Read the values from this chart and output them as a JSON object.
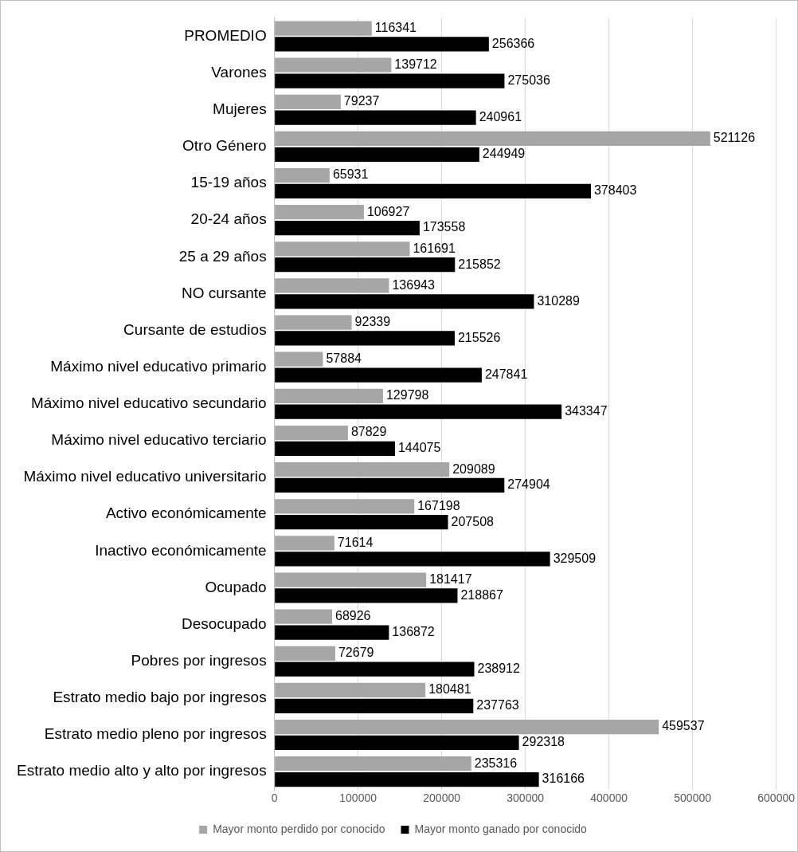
{
  "chart_data": {
    "type": "bar",
    "orientation": "horizontal",
    "categories": [
      "PROMEDIO",
      "Varones",
      "Mujeres",
      "Otro Género",
      "15-19 años",
      "20-24 años",
      "25 a 29 años",
      "NO cursante",
      "Cursante de estudios",
      "Máximo nivel educativo primario",
      "Máximo nivel educativo secundario",
      "Máximo nivel educativo terciario",
      "Máximo nivel educativo universitario",
      "Activo económicamente",
      "Inactivo económicamente",
      "Ocupado",
      "Desocupado",
      "Pobres por ingresos",
      "Estrato medio bajo por ingresos",
      "Estrato medio pleno por ingresos",
      "Estrato medio alto y alto por ingresos"
    ],
    "series": [
      {
        "name": "Mayor monto perdido por conocido",
        "color": "#a6a6a6",
        "values": [
          116341,
          139712,
          79237,
          521126,
          65931,
          106927,
          161691,
          136943,
          92339,
          57884,
          129798,
          87829,
          209089,
          167198,
          71614,
          181417,
          68926,
          72679,
          180481,
          459537,
          235316
        ]
      },
      {
        "name": "Mayor monto ganado por conocido",
        "color": "#000000",
        "values": [
          256366,
          275036,
          240961,
          244949,
          378403,
          173558,
          215852,
          310289,
          215526,
          247841,
          343347,
          144075,
          274904,
          207508,
          329509,
          218867,
          136872,
          238912,
          237763,
          292318,
          316166
        ]
      }
    ],
    "xlim": [
      0,
      600000
    ],
    "xticks": [
      0,
      100000,
      200000,
      300000,
      400000,
      500000,
      600000
    ],
    "grid": "x",
    "legend": "bottom",
    "data_labels": true
  }
}
